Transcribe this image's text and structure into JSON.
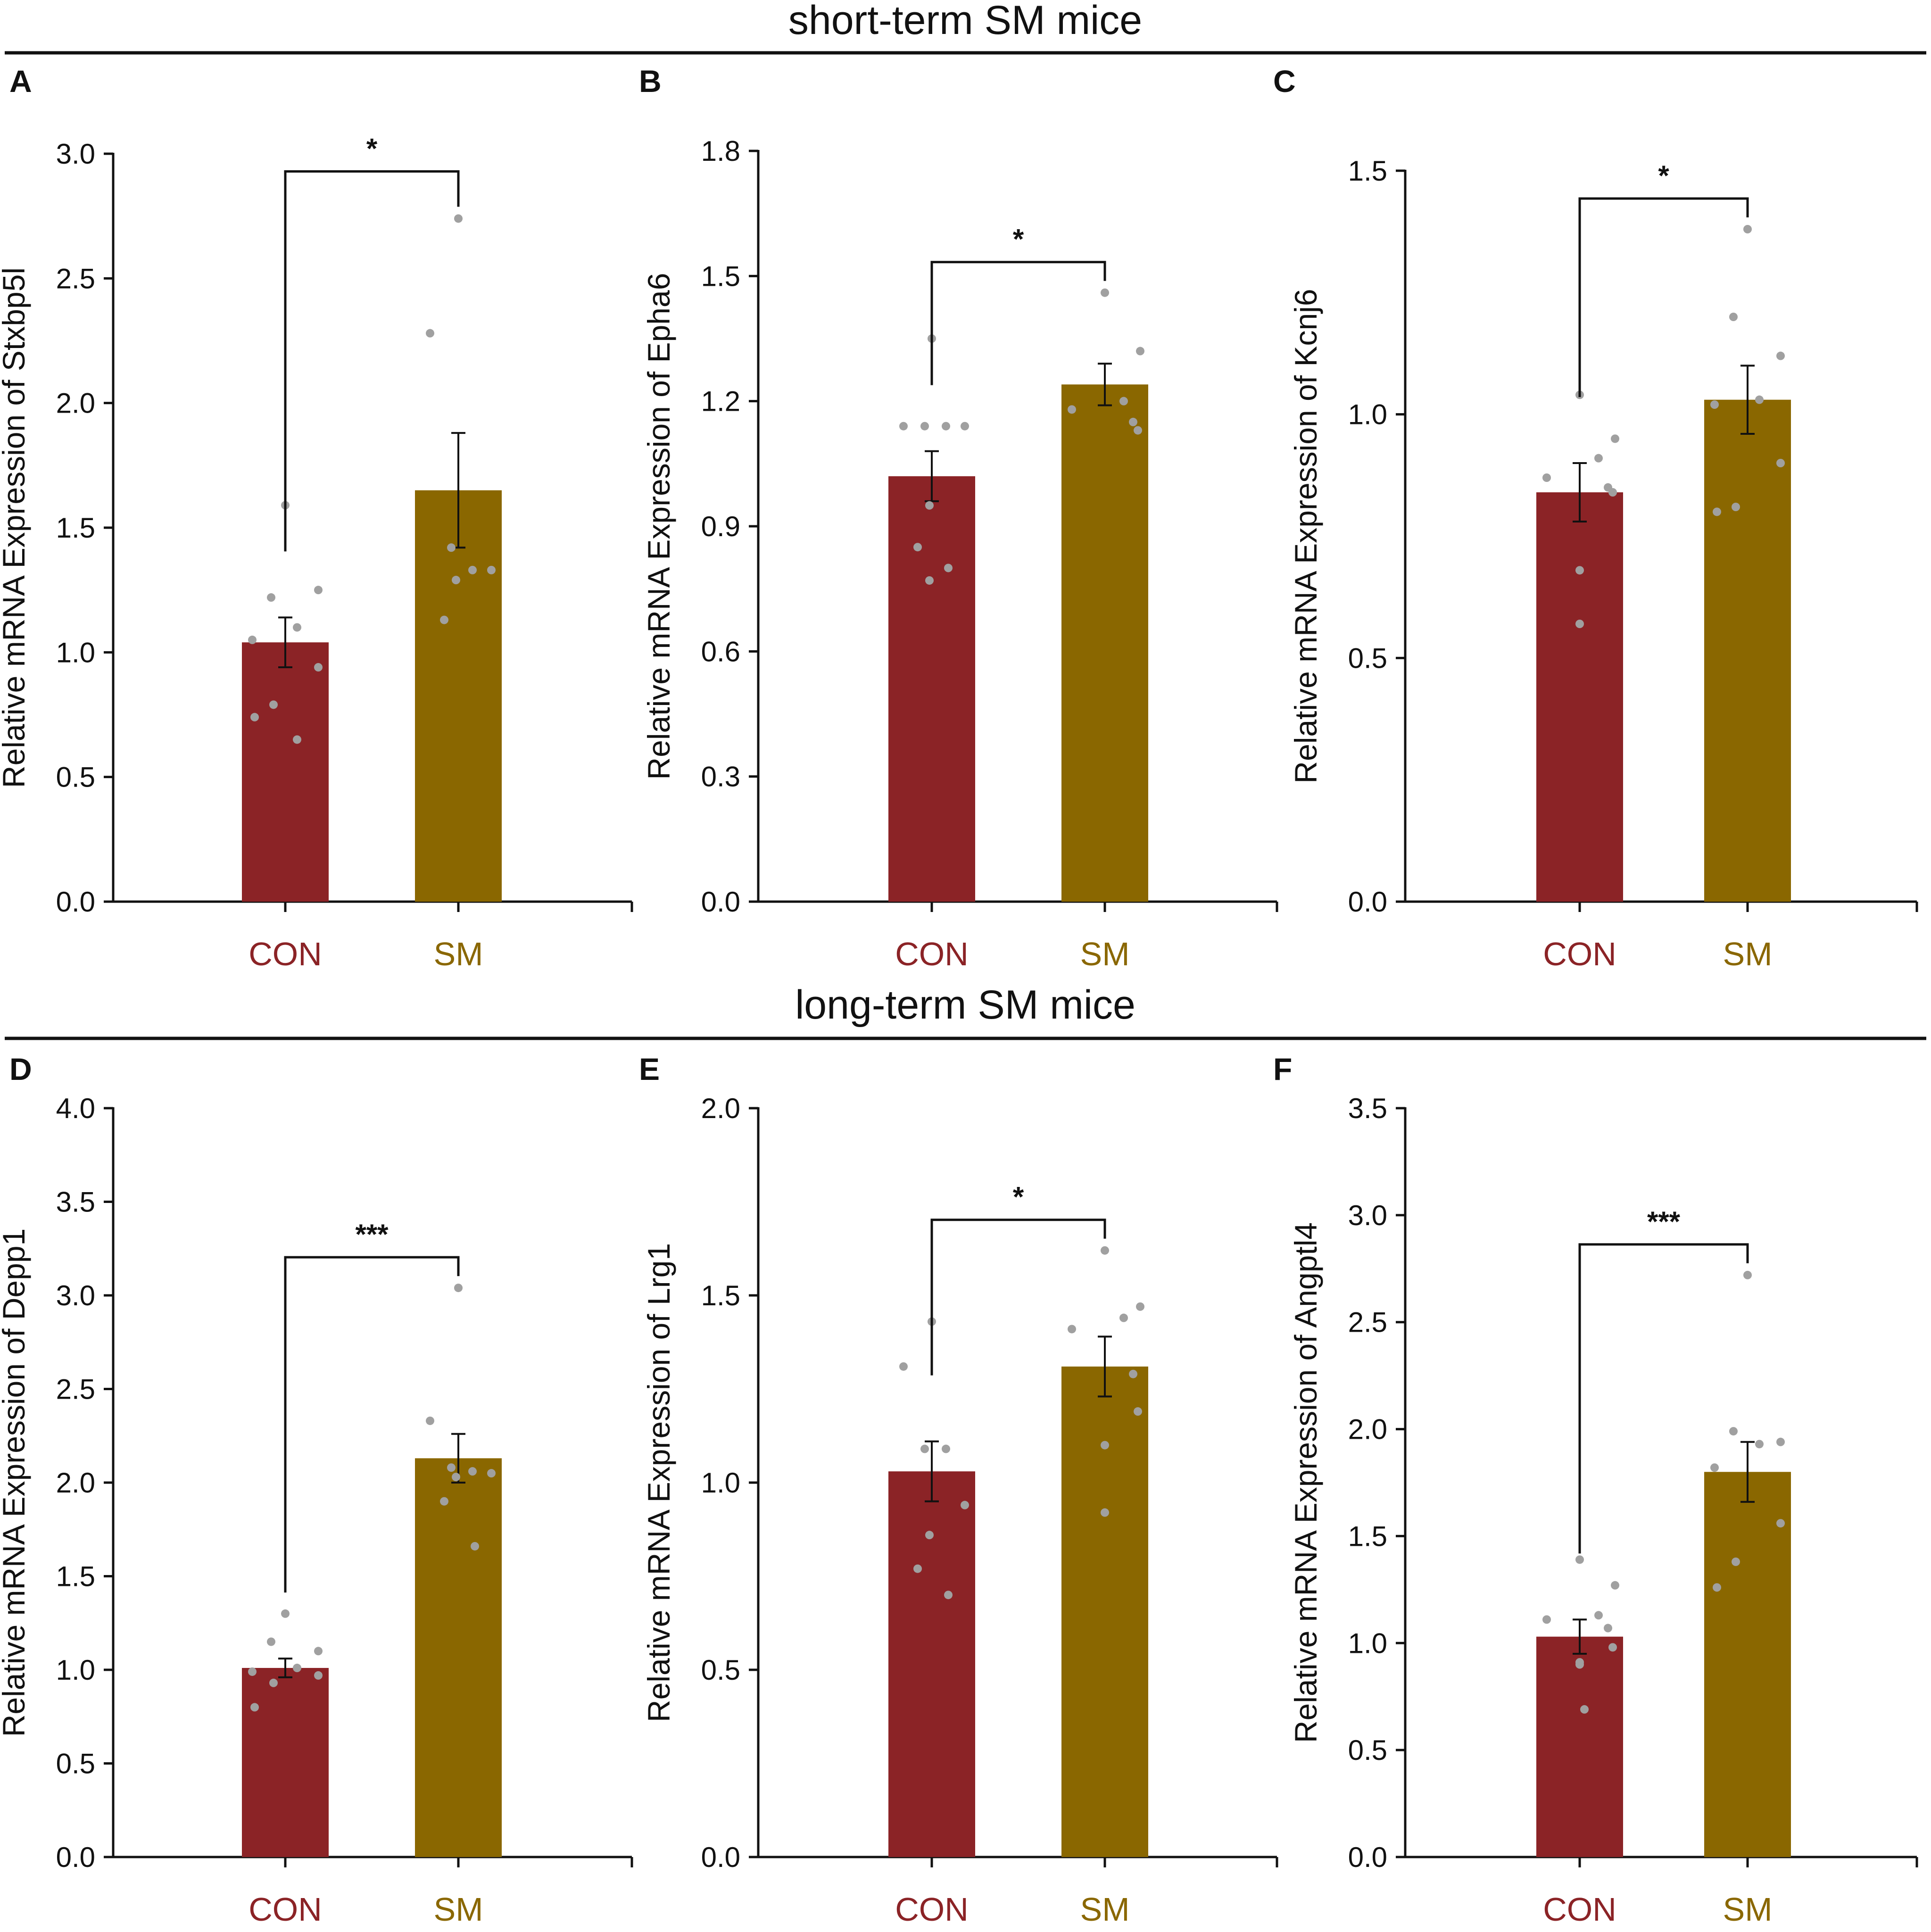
{
  "titles": {
    "short": "short-term SM mice",
    "long": "long-term SM mice"
  },
  "colors": {
    "con": "#8B2326",
    "sm": "#8A6700",
    "dots": "#A0A0A0",
    "ink": "#111111"
  },
  "chart_data": [
    {
      "id": "A",
      "type": "bar",
      "section": "short",
      "title": "",
      "xlabel": "",
      "ylabel": "Relative mRNA Expression of Stxbp5l",
      "ylim": [
        0,
        3.0
      ],
      "yticks": [
        "0.0",
        "0.5",
        "1.0",
        "1.5",
        "2.0",
        "2.5",
        "3.0"
      ],
      "categories": [
        "CON",
        "SM"
      ],
      "values": [
        1.04,
        1.65
      ],
      "errors": [
        0.1,
        0.23
      ],
      "points": [
        [
          1.59,
          1.22,
          1.25,
          1.1,
          1.05,
          0.94,
          0.79,
          0.74,
          0.65
        ],
        [
          2.74,
          2.28,
          1.42,
          1.33,
          1.33,
          1.29,
          1.13
        ]
      ],
      "significance": "*"
    },
    {
      "id": "B",
      "type": "bar",
      "section": "short",
      "title": "",
      "xlabel": "",
      "ylabel": "Relative mRNA Expression of Epha6",
      "ylim": [
        0,
        1.8
      ],
      "yticks": [
        "0.0",
        "0.3",
        "0.6",
        "0.9",
        "1.2",
        "1.5",
        "1.8"
      ],
      "categories": [
        "CON",
        "SM"
      ],
      "values": [
        1.02,
        1.24
      ],
      "errors": [
        0.06,
        0.05
      ],
      "points": [
        [
          1.35,
          1.14,
          1.14,
          1.14,
          1.14,
          0.95,
          0.85,
          0.8,
          0.77
        ],
        [
          1.46,
          1.32,
          1.2,
          1.18,
          1.15,
          1.13
        ]
      ],
      "significance": "*"
    },
    {
      "id": "C",
      "type": "bar",
      "section": "short",
      "title": "",
      "xlabel": "",
      "ylabel": "Relative mRNA Expression of Kcnj6",
      "ylim": [
        0,
        1.5
      ],
      "yticks": [
        "0.0",
        "0.5",
        "1.0",
        "1.5"
      ],
      "categories": [
        "CON",
        "SM"
      ],
      "values": [
        0.84,
        1.03
      ],
      "errors": [
        0.06,
        0.07
      ],
      "points": [
        [
          1.04,
          0.95,
          0.91,
          0.87,
          0.85,
          0.84,
          0.68,
          0.57
        ],
        [
          1.38,
          1.2,
          1.12,
          1.03,
          1.02,
          0.9,
          0.81,
          0.8
        ]
      ],
      "significance": "*"
    },
    {
      "id": "D",
      "type": "bar",
      "section": "long",
      "title": "",
      "xlabel": "",
      "ylabel": "Relative mRNA Expression of Depp1",
      "ylim": [
        0,
        4.0
      ],
      "yticks": [
        "0.0",
        "0.5",
        "1.0",
        "1.5",
        "2.0",
        "2.5",
        "3.0",
        "3.5",
        "4.0"
      ],
      "categories": [
        "CON",
        "SM"
      ],
      "values": [
        1.01,
        2.13
      ],
      "errors": [
        0.05,
        0.13
      ],
      "points": [
        [
          1.3,
          1.15,
          1.1,
          1.01,
          0.99,
          0.97,
          0.93,
          0.8
        ],
        [
          3.04,
          2.33,
          2.08,
          2.06,
          2.05,
          2.03,
          1.9,
          1.66
        ]
      ],
      "significance": "***"
    },
    {
      "id": "E",
      "type": "bar",
      "section": "long",
      "title": "",
      "xlabel": "",
      "ylabel": "Relative mRNA Expression of Lrg1",
      "ylim": [
        0,
        2.0
      ],
      "yticks": [
        "0.0",
        "0.5",
        "1.0",
        "1.5",
        "2.0"
      ],
      "categories": [
        "CON",
        "SM"
      ],
      "values": [
        1.03,
        1.31
      ],
      "errors": [
        0.08,
        0.08
      ],
      "points": [
        [
          1.43,
          1.31,
          1.09,
          1.09,
          0.94,
          0.86,
          0.77,
          0.7
        ],
        [
          1.62,
          1.47,
          1.44,
          1.41,
          1.29,
          1.19,
          1.1,
          0.92
        ]
      ],
      "significance": "*"
    },
    {
      "id": "F",
      "type": "bar",
      "section": "long",
      "title": "",
      "xlabel": "",
      "ylabel": "Relative mRNA Expression of Angptl4",
      "ylim": [
        0,
        3.5
      ],
      "yticks": [
        "0.0",
        "0.5",
        "1.0",
        "1.5",
        "2.0",
        "2.5",
        "3.0",
        "3.5"
      ],
      "categories": [
        "CON",
        "SM"
      ],
      "values": [
        1.03,
        1.8
      ],
      "errors": [
        0.08,
        0.14
      ],
      "points": [
        [
          1.39,
          1.27,
          1.13,
          1.11,
          1.07,
          0.98,
          0.91,
          0.9,
          0.69
        ],
        [
          2.72,
          1.99,
          1.94,
          1.93,
          1.82,
          1.56,
          1.38,
          1.26
        ]
      ],
      "significance": "***"
    }
  ]
}
